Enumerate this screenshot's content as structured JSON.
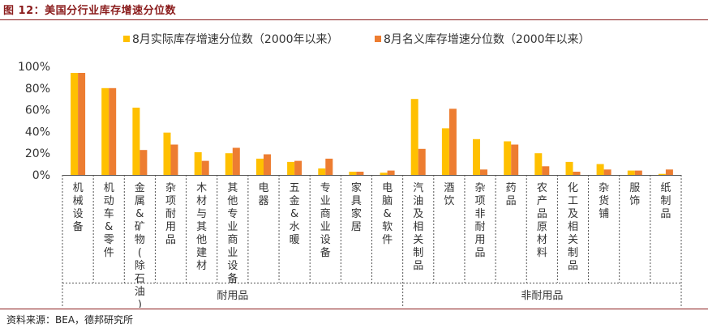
{
  "figure": {
    "title": "图 12：美国分行业库存增速分位数",
    "source": "资料来源：BEA，德邦研究所"
  },
  "chart_data": {
    "type": "bar",
    "title": "",
    "xlabel": "",
    "ylabel": "",
    "ylim": [
      0,
      100
    ],
    "yticks": [
      "0%",
      "20%",
      "40%",
      "60%",
      "80%",
      "100%"
    ],
    "legend_position": "top",
    "categories": [
      "机械设备",
      "机动车&零件",
      "金属&矿物(除石油)",
      "杂项耐用品",
      "木材与其他建材",
      "其他专业商业设备",
      "电器",
      "五金&水暖",
      "专业商业设备",
      "家具家居",
      "电脑&软件",
      "汽油及相关制品",
      "酒饮",
      "杂项非耐用品",
      "药品",
      "农产品原材料",
      "化工及相关制品",
      "杂货铺",
      "服饰",
      "纸制品"
    ],
    "series": [
      {
        "name": "8月实际库存增速分位数（2000年以来）",
        "color": "#FFC000",
        "values": [
          94,
          80,
          62,
          39,
          21,
          20,
          15,
          12,
          6,
          3,
          2,
          70,
          43,
          33,
          31,
          20,
          12,
          10,
          4,
          1
        ]
      },
      {
        "name": "8月名义库存增速分位数（2000年以来）",
        "color": "#ED7D31",
        "values": [
          94,
          80,
          23,
          28,
          13,
          25,
          19,
          13,
          15,
          3,
          4,
          24,
          61,
          5,
          28,
          8,
          3,
          5,
          4,
          5
        ]
      }
    ],
    "groups": [
      {
        "label": "耐用品",
        "start": 0,
        "end": 10
      },
      {
        "label": "非耐用品",
        "start": 11,
        "end": 19
      }
    ]
  }
}
